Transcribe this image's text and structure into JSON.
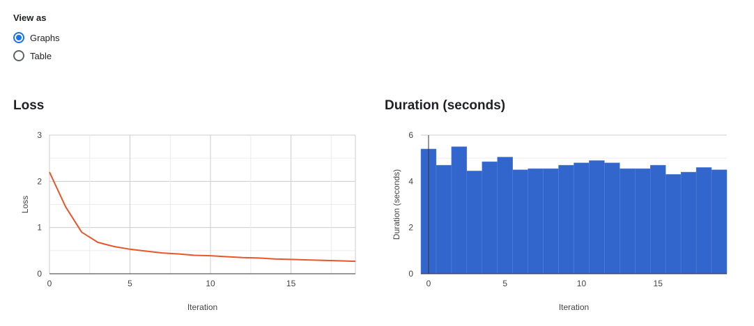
{
  "view_as": {
    "title": "View as",
    "options": [
      {
        "label": "Graphs",
        "checked": true
      },
      {
        "label": "Table",
        "checked": false
      }
    ]
  },
  "chart_data": [
    {
      "type": "line",
      "title": "Loss",
      "xlabel": "Iteration",
      "ylabel": "Loss",
      "xlim": [
        0,
        19
      ],
      "ylim": [
        0,
        3
      ],
      "xticks": [
        0,
        5,
        10,
        15
      ],
      "yticks": [
        0,
        1,
        2,
        3
      ],
      "grid": true,
      "color": "#e8562a",
      "series": [
        {
          "x": [
            0,
            1,
            2,
            3,
            4,
            5,
            6,
            7,
            8,
            9,
            10,
            11,
            12,
            13,
            14,
            15,
            16,
            17,
            18,
            19
          ],
          "values": [
            2.2,
            1.45,
            0.9,
            0.68,
            0.59,
            0.53,
            0.49,
            0.45,
            0.43,
            0.4,
            0.39,
            0.37,
            0.35,
            0.34,
            0.32,
            0.31,
            0.3,
            0.29,
            0.28,
            0.27
          ]
        }
      ]
    },
    {
      "type": "bar",
      "title": "Duration (seconds)",
      "xlabel": "Iteration",
      "ylabel": "Duration (seconds)",
      "xlim": [
        -0.5,
        19.5
      ],
      "ylim": [
        0,
        6
      ],
      "xticks": [
        0,
        5,
        10,
        15
      ],
      "yticks": [
        0,
        2,
        4,
        6
      ],
      "grid": true,
      "color": "#3366cc",
      "categories": [
        0,
        1,
        2,
        3,
        4,
        5,
        6,
        7,
        8,
        9,
        10,
        11,
        12,
        13,
        14,
        15,
        16,
        17,
        18,
        19
      ],
      "values": [
        5.4,
        4.7,
        5.5,
        4.45,
        4.85,
        5.05,
        4.5,
        4.55,
        4.55,
        4.7,
        4.8,
        4.9,
        4.8,
        4.55,
        4.55,
        4.7,
        4.3,
        4.4,
        4.6,
        4.5
      ]
    }
  ]
}
